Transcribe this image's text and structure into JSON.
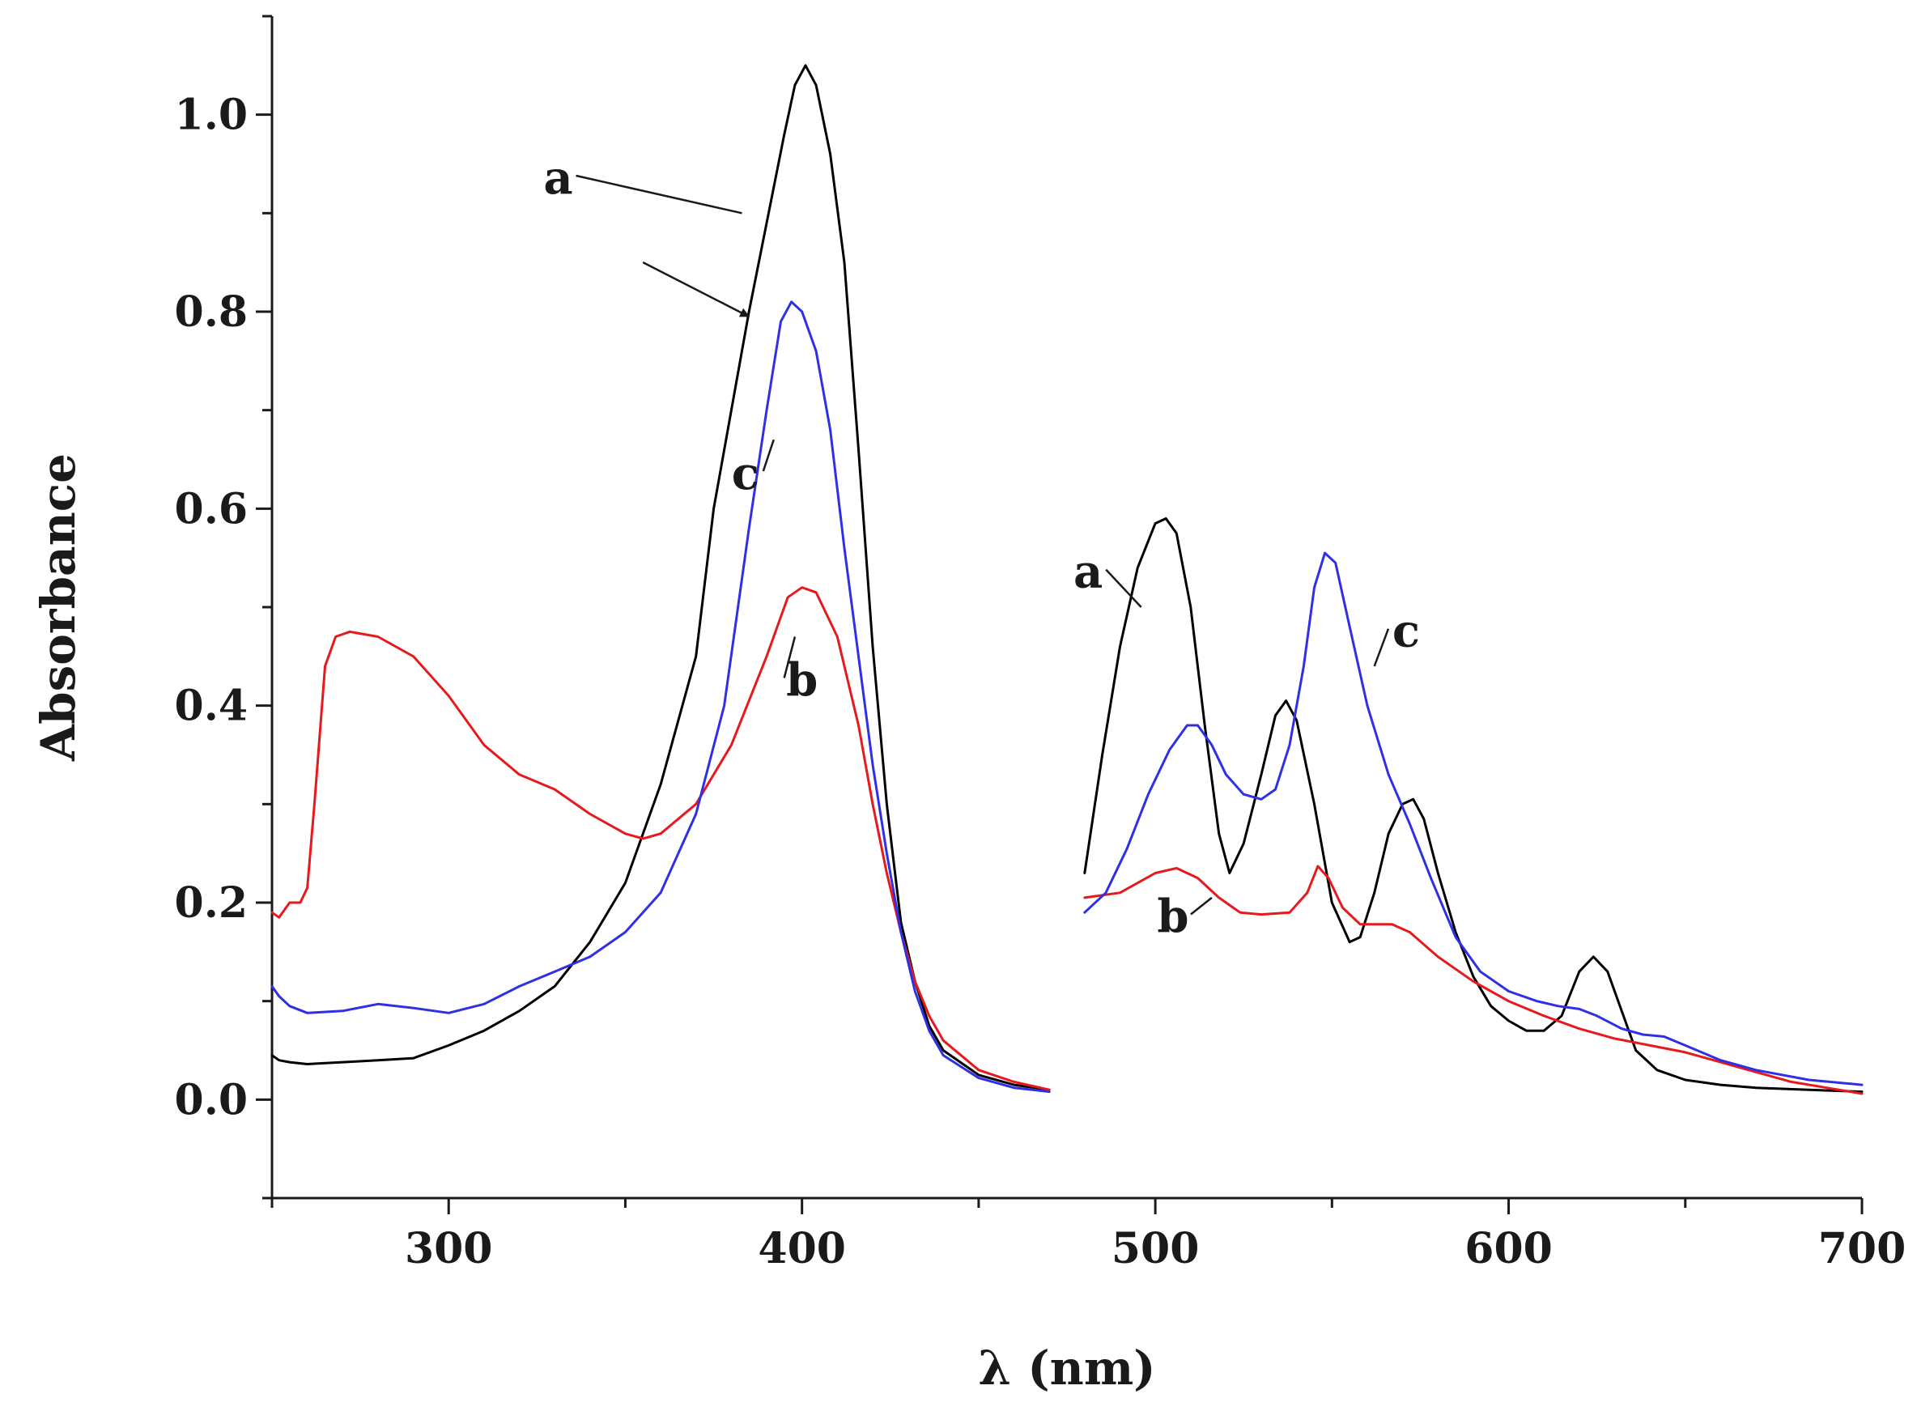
{
  "chart_data": {
    "type": "line",
    "title": "",
    "xlabel": "λ (nm)",
    "ylabel": "Absorbance",
    "xlim": [
      250,
      700
    ],
    "ylim": [
      -0.1,
      1.1
    ],
    "x_ticks": [
      300,
      400,
      500,
      600,
      700
    ],
    "x_tick_labels": [
      "300",
      "400",
      "500",
      "600",
      "700"
    ],
    "y_ticks": [
      0.0,
      0.2,
      0.4,
      0.6,
      0.8,
      1.0
    ],
    "y_tick_labels": [
      "0.0",
      "0.2",
      "0.4",
      "0.6",
      "0.8",
      "1.0"
    ],
    "grid": false,
    "segments_note": "Spectrum drawn in two ranges: 250-470 nm and 480-700 nm (the visible region shown magnified)",
    "series": [
      {
        "name": "a",
        "color": "#000000",
        "segments": [
          [
            [
              250,
              0.045
            ],
            [
              252,
              0.04
            ],
            [
              255,
              0.038
            ],
            [
              260,
              0.036
            ],
            [
              270,
              0.038
            ],
            [
              280,
              0.04
            ],
            [
              290,
              0.042
            ],
            [
              300,
              0.055
            ],
            [
              310,
              0.07
            ],
            [
              320,
              0.09
            ],
            [
              330,
              0.115
            ],
            [
              340,
              0.16
            ],
            [
              350,
              0.22
            ],
            [
              360,
              0.32
            ],
            [
              370,
              0.45
            ],
            [
              375,
              0.6
            ],
            [
              380,
              0.7
            ],
            [
              385,
              0.8
            ],
            [
              390,
              0.89
            ],
            [
              395,
              0.98
            ],
            [
              398,
              1.03
            ],
            [
              401,
              1.05
            ],
            [
              404,
              1.03
            ],
            [
              408,
              0.96
            ],
            [
              412,
              0.85
            ],
            [
              416,
              0.66
            ],
            [
              420,
              0.46
            ],
            [
              424,
              0.3
            ],
            [
              428,
              0.18
            ],
            [
              432,
              0.12
            ],
            [
              436,
              0.075
            ],
            [
              440,
              0.05
            ],
            [
              450,
              0.025
            ],
            [
              460,
              0.015
            ],
            [
              470,
              0.01
            ]
          ],
          [
            [
              480,
              0.23
            ],
            [
              485,
              0.35
            ],
            [
              490,
              0.46
            ],
            [
              495,
              0.54
            ],
            [
              500,
              0.585
            ],
            [
              503,
              0.59
            ],
            [
              506,
              0.575
            ],
            [
              510,
              0.5
            ],
            [
              514,
              0.38
            ],
            [
              518,
              0.27
            ],
            [
              521,
              0.23
            ],
            [
              525,
              0.26
            ],
            [
              530,
              0.33
            ],
            [
              534,
              0.39
            ],
            [
              537,
              0.405
            ],
            [
              540,
              0.385
            ],
            [
              545,
              0.3
            ],
            [
              550,
              0.2
            ],
            [
              555,
              0.16
            ],
            [
              558,
              0.165
            ],
            [
              562,
              0.21
            ],
            [
              566,
              0.27
            ],
            [
              570,
              0.3
            ],
            [
              573,
              0.305
            ],
            [
              576,
              0.285
            ],
            [
              580,
              0.23
            ],
            [
              585,
              0.17
            ],
            [
              590,
              0.125
            ],
            [
              595,
              0.095
            ],
            [
              600,
              0.08
            ],
            [
              605,
              0.07
            ],
            [
              610,
              0.07
            ],
            [
              615,
              0.085
            ],
            [
              620,
              0.13
            ],
            [
              624,
              0.145
            ],
            [
              628,
              0.13
            ],
            [
              632,
              0.09
            ],
            [
              636,
              0.05
            ],
            [
              642,
              0.03
            ],
            [
              650,
              0.02
            ],
            [
              660,
              0.015
            ],
            [
              670,
              0.012
            ],
            [
              685,
              0.01
            ],
            [
              700,
              0.008
            ]
          ]
        ]
      },
      {
        "name": "b",
        "color": "#e8191c",
        "segments": [
          [
            [
              250,
              0.19
            ],
            [
              252,
              0.185
            ],
            [
              255,
              0.2
            ],
            [
              258,
              0.2
            ],
            [
              260,
              0.215
            ],
            [
              262,
              0.3
            ],
            [
              265,
              0.44
            ],
            [
              268,
              0.47
            ],
            [
              272,
              0.475
            ],
            [
              280,
              0.47
            ],
            [
              290,
              0.45
            ],
            [
              300,
              0.41
            ],
            [
              310,
              0.36
            ],
            [
              320,
              0.33
            ],
            [
              330,
              0.315
            ],
            [
              340,
              0.29
            ],
            [
              350,
              0.27
            ],
            [
              355,
              0.265
            ],
            [
              360,
              0.27
            ],
            [
              370,
              0.3
            ],
            [
              380,
              0.36
            ],
            [
              390,
              0.45
            ],
            [
              396,
              0.51
            ],
            [
              400,
              0.52
            ],
            [
              404,
              0.515
            ],
            [
              410,
              0.47
            ],
            [
              416,
              0.38
            ],
            [
              420,
              0.3
            ],
            [
              424,
              0.23
            ],
            [
              428,
              0.17
            ],
            [
              432,
              0.12
            ],
            [
              436,
              0.085
            ],
            [
              440,
              0.06
            ],
            [
              450,
              0.03
            ],
            [
              460,
              0.018
            ],
            [
              470,
              0.01
            ]
          ],
          [
            [
              480,
              0.205
            ],
            [
              490,
              0.21
            ],
            [
              500,
              0.23
            ],
            [
              506,
              0.235
            ],
            [
              512,
              0.225
            ],
            [
              518,
              0.205
            ],
            [
              524,
              0.19
            ],
            [
              530,
              0.188
            ],
            [
              538,
              0.19
            ],
            [
              543,
              0.21
            ],
            [
              546,
              0.237
            ],
            [
              549,
              0.225
            ],
            [
              553,
              0.195
            ],
            [
              558,
              0.178
            ],
            [
              563,
              0.178
            ],
            [
              567,
              0.178
            ],
            [
              572,
              0.17
            ],
            [
              580,
              0.145
            ],
            [
              590,
              0.12
            ],
            [
              600,
              0.1
            ],
            [
              610,
              0.085
            ],
            [
              620,
              0.072
            ],
            [
              630,
              0.062
            ],
            [
              640,
              0.055
            ],
            [
              650,
              0.048
            ],
            [
              660,
              0.038
            ],
            [
              670,
              0.028
            ],
            [
              680,
              0.018
            ],
            [
              690,
              0.012
            ],
            [
              700,
              0.006
            ]
          ]
        ]
      },
      {
        "name": "c",
        "color": "#2f2fe6",
        "segments": [
          [
            [
              250,
              0.115
            ],
            [
              252,
              0.105
            ],
            [
              255,
              0.095
            ],
            [
              260,
              0.088
            ],
            [
              270,
              0.09
            ],
            [
              280,
              0.097
            ],
            [
              290,
              0.093
            ],
            [
              300,
              0.088
            ],
            [
              310,
              0.097
            ],
            [
              320,
              0.115
            ],
            [
              330,
              0.13
            ],
            [
              340,
              0.145
            ],
            [
              350,
              0.17
            ],
            [
              360,
              0.21
            ],
            [
              370,
              0.29
            ],
            [
              378,
              0.4
            ],
            [
              385,
              0.58
            ],
            [
              390,
              0.7
            ],
            [
              394,
              0.79
            ],
            [
              397,
              0.81
            ],
            [
              400,
              0.8
            ],
            [
              404,
              0.76
            ],
            [
              408,
              0.68
            ],
            [
              412,
              0.56
            ],
            [
              416,
              0.45
            ],
            [
              420,
              0.34
            ],
            [
              424,
              0.25
            ],
            [
              428,
              0.17
            ],
            [
              432,
              0.11
            ],
            [
              436,
              0.07
            ],
            [
              440,
              0.045
            ],
            [
              450,
              0.022
            ],
            [
              460,
              0.012
            ],
            [
              470,
              0.008
            ]
          ],
          [
            [
              480,
              0.19
            ],
            [
              486,
              0.21
            ],
            [
              492,
              0.255
            ],
            [
              498,
              0.31
            ],
            [
              504,
              0.355
            ],
            [
              509,
              0.38
            ],
            [
              512,
              0.38
            ],
            [
              516,
              0.36
            ],
            [
              520,
              0.33
            ],
            [
              525,
              0.31
            ],
            [
              530,
              0.305
            ],
            [
              534,
              0.315
            ],
            [
              538,
              0.36
            ],
            [
              542,
              0.44
            ],
            [
              545,
              0.52
            ],
            [
              548,
              0.555
            ],
            [
              551,
              0.545
            ],
            [
              555,
              0.48
            ],
            [
              560,
              0.4
            ],
            [
              566,
              0.33
            ],
            [
              572,
              0.28
            ],
            [
              578,
              0.225
            ],
            [
              585,
              0.165
            ],
            [
              592,
              0.13
            ],
            [
              600,
              0.11
            ],
            [
              608,
              0.1
            ],
            [
              614,
              0.095
            ],
            [
              620,
              0.092
            ],
            [
              625,
              0.085
            ],
            [
              632,
              0.072
            ],
            [
              638,
              0.066
            ],
            [
              644,
              0.064
            ],
            [
              650,
              0.055
            ],
            [
              660,
              0.04
            ],
            [
              670,
              0.03
            ],
            [
              685,
              0.02
            ],
            [
              700,
              0.015
            ]
          ]
        ]
      }
    ],
    "annotations": [
      {
        "text": "a",
        "label_at": [
          331,
          0.92
        ],
        "points_to": [
          383,
          0.9
        ]
      },
      {
        "text": "c",
        "label_at": [
          384,
          0.62
        ],
        "points_to": [
          392,
          0.67
        ]
      },
      {
        "text": "b",
        "label_at": [
          400,
          0.41
        ],
        "points_to": [
          398,
          0.47
        ]
      },
      {
        "text": "a",
        "label_at": [
          481,
          0.52
        ],
        "points_to": [
          496,
          0.5
        ]
      },
      {
        "text": "b",
        "label_at": [
          505,
          0.17
        ],
        "points_to": [
          516,
          0.205
        ]
      },
      {
        "text": "c",
        "label_at": [
          571,
          0.46
        ],
        "points_to": [
          562,
          0.44
        ]
      },
      {
        "text": "",
        "arrow_from": [
          355,
          0.85
        ],
        "arrow_to": [
          385,
          0.795
        ]
      }
    ]
  }
}
